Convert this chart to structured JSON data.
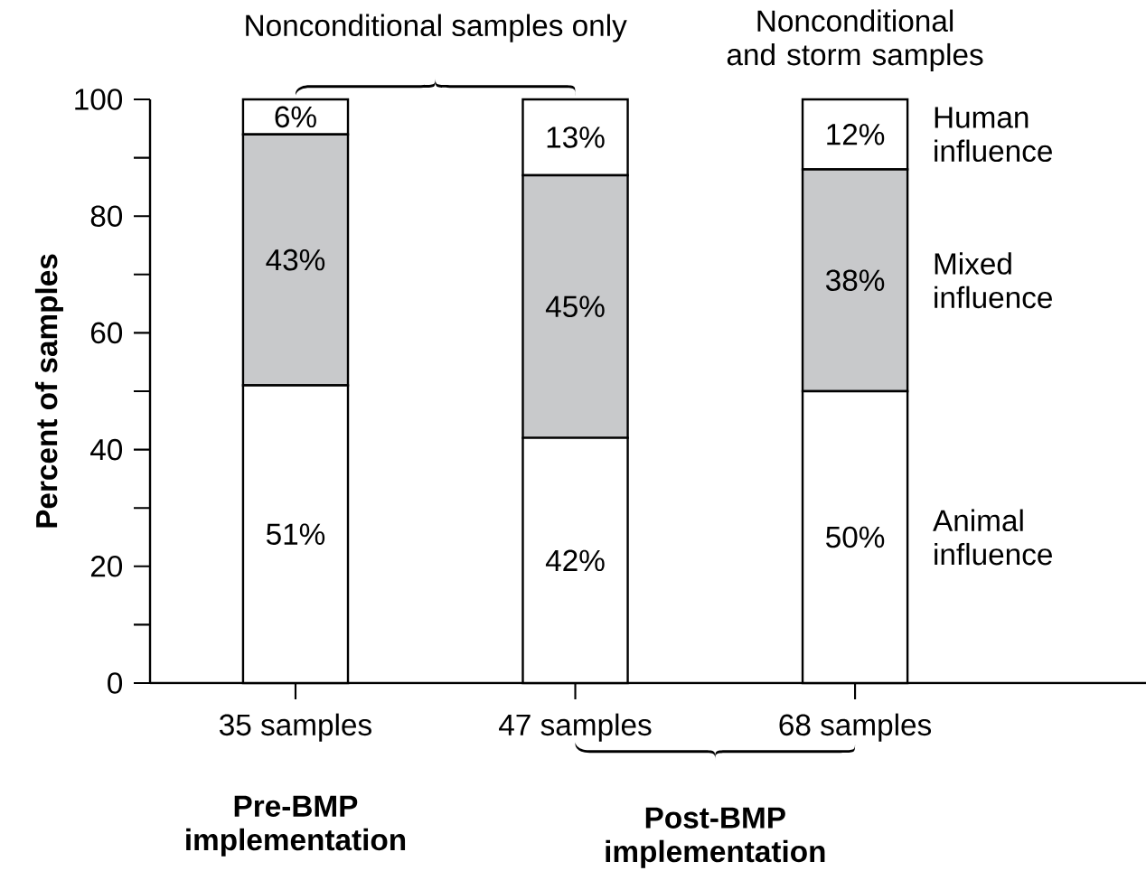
{
  "chart_data": {
    "type": "bar",
    "stacked": true,
    "ylabel": "Percent of samples",
    "categories": [
      "35 samples",
      "47 samples",
      "68 samples"
    ],
    "series": [
      {
        "name": "Animal influence",
        "color": "#ffffff",
        "values": [
          51,
          42,
          50
        ],
        "value_labels": [
          "51%",
          "42%",
          "50%"
        ]
      },
      {
        "name": "Mixed influence",
        "color": "#c8c9cb",
        "values": [
          43,
          45,
          38
        ],
        "value_labels": [
          "43%",
          "45%",
          "38%"
        ]
      },
      {
        "name": "Human influence",
        "color": "#ffffff",
        "values": [
          6,
          13,
          12
        ],
        "value_labels": [
          "6%",
          "13%",
          "12%"
        ]
      }
    ],
    "ylim": [
      0,
      100
    ],
    "yticks": [
      0,
      {
        "value": 10,
        "label": null
      },
      20,
      {
        "value": 30,
        "label": null
      },
      40,
      {
        "value": 50,
        "label": null
      },
      60,
      {
        "value": 70,
        "label": null
      },
      80,
      {
        "value": 90,
        "label": null
      },
      100
    ],
    "annotations": [
      "Nonconditional samples only",
      "Nonconditional and storm samples",
      "Pre-BMP implementation",
      "Post-BMP implementation"
    ]
  }
}
